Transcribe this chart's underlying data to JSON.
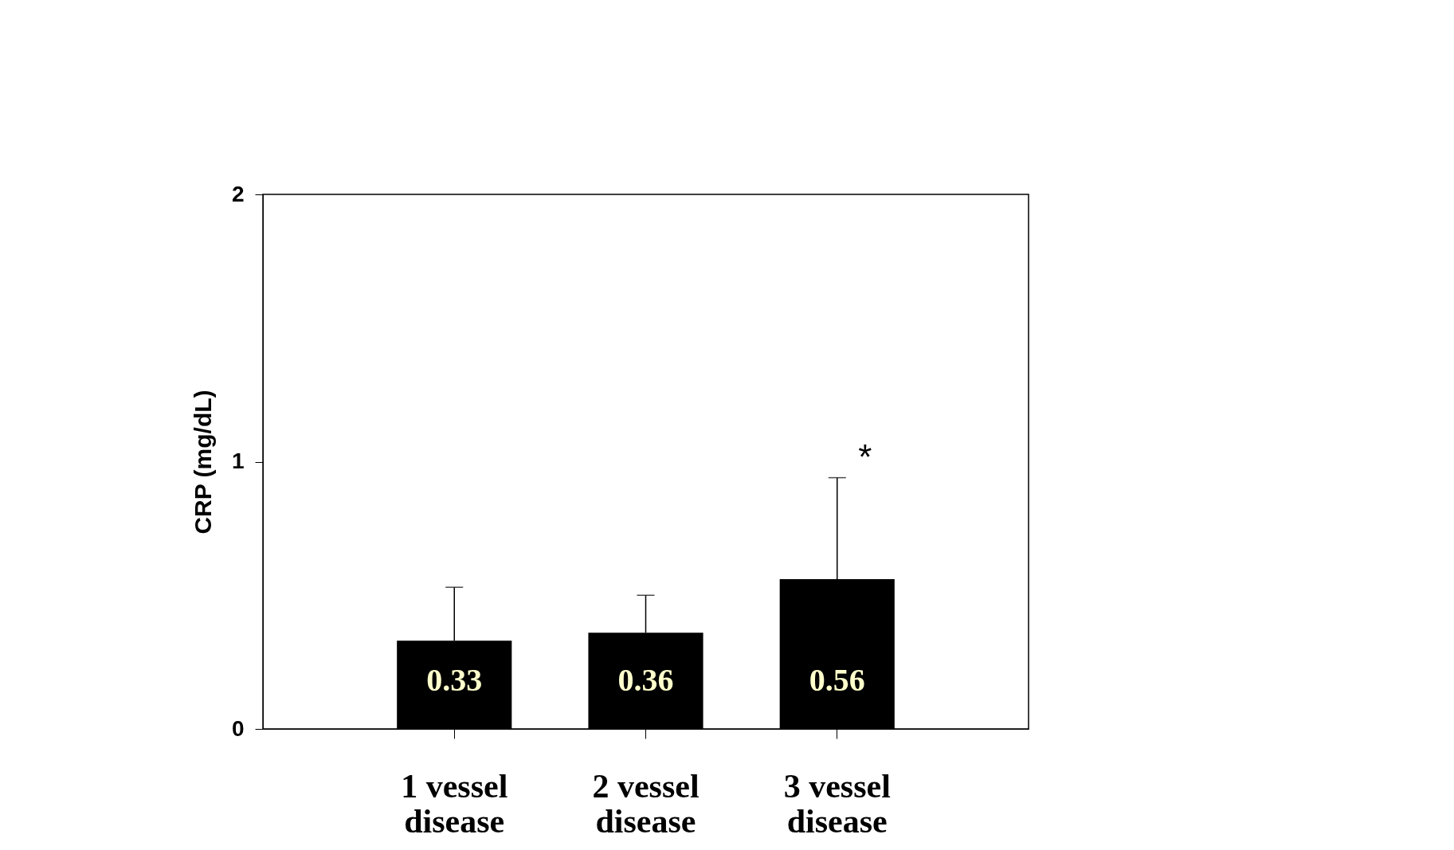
{
  "chart_data": {
    "type": "bar",
    "ylabel": "CRP (mg/dL)",
    "categories": [
      "1 vessel disease",
      "2 vessel disease",
      "3 vessel disease"
    ],
    "values": [
      0.33,
      0.36,
      0.56
    ],
    "color": "#000000",
    "errors": [
      [
        0.33,
        0.53
      ],
      [
        0.36,
        0.5
      ],
      [
        0.56,
        0.94
      ]
    ],
    "data_labels": true,
    "ylim": [
      0,
      2
    ],
    "yticks": [
      0,
      1,
      2
    ],
    "grid": false,
    "annotations": [
      {
        "text": "*",
        "x": "3 vessel disease",
        "y": 0.94
      }
    ]
  }
}
